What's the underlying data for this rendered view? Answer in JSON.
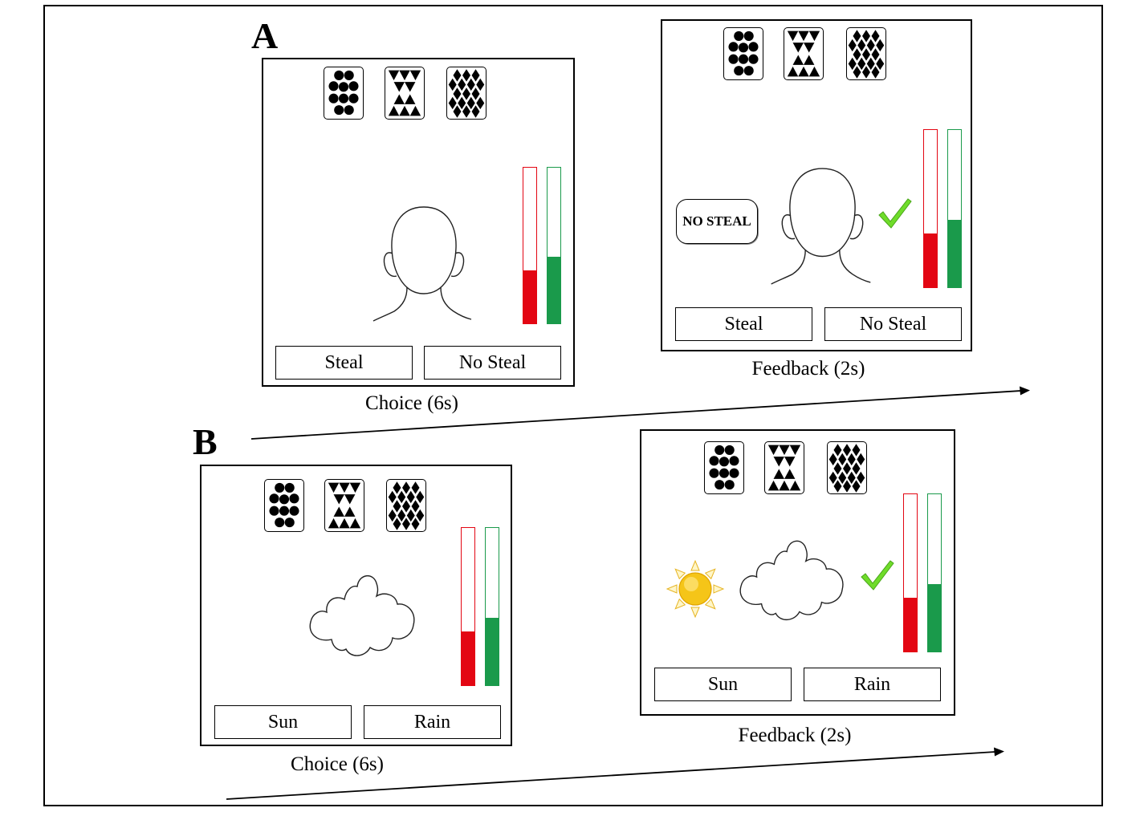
{
  "panel_a": {
    "letter": "A",
    "choice_screen": {
      "buttons": [
        "Steal",
        "No Steal"
      ],
      "caption": "Choice (6s)",
      "red_level": 0.34,
      "green_level": 0.43
    },
    "feedback_screen": {
      "bubble": "NO STEAL",
      "buttons": [
        "Steal",
        "No Steal"
      ],
      "caption": "Feedback (2s)",
      "red_level": 0.34,
      "green_level": 0.43
    }
  },
  "panel_b": {
    "letter": "B",
    "choice_screen": {
      "buttons": [
        "Sun",
        "Rain"
      ],
      "caption": "Choice (6s)",
      "red_level": 0.34,
      "green_level": 0.43
    },
    "feedback_screen": {
      "buttons": [
        "Sun",
        "Rain"
      ],
      "caption": "Feedback (2s)",
      "red_level": 0.34,
      "green_level": 0.43
    }
  },
  "icons": [
    "circles-card-icon",
    "triangles-card-icon",
    "diamonds-card-icon",
    "head-outline-icon",
    "cloud-icon",
    "sun-icon",
    "checkmark-icon"
  ],
  "colors": {
    "red": "#e30613",
    "green": "#1a9a4b",
    "check": "#6fdc2a",
    "sun": "#f5c518"
  }
}
